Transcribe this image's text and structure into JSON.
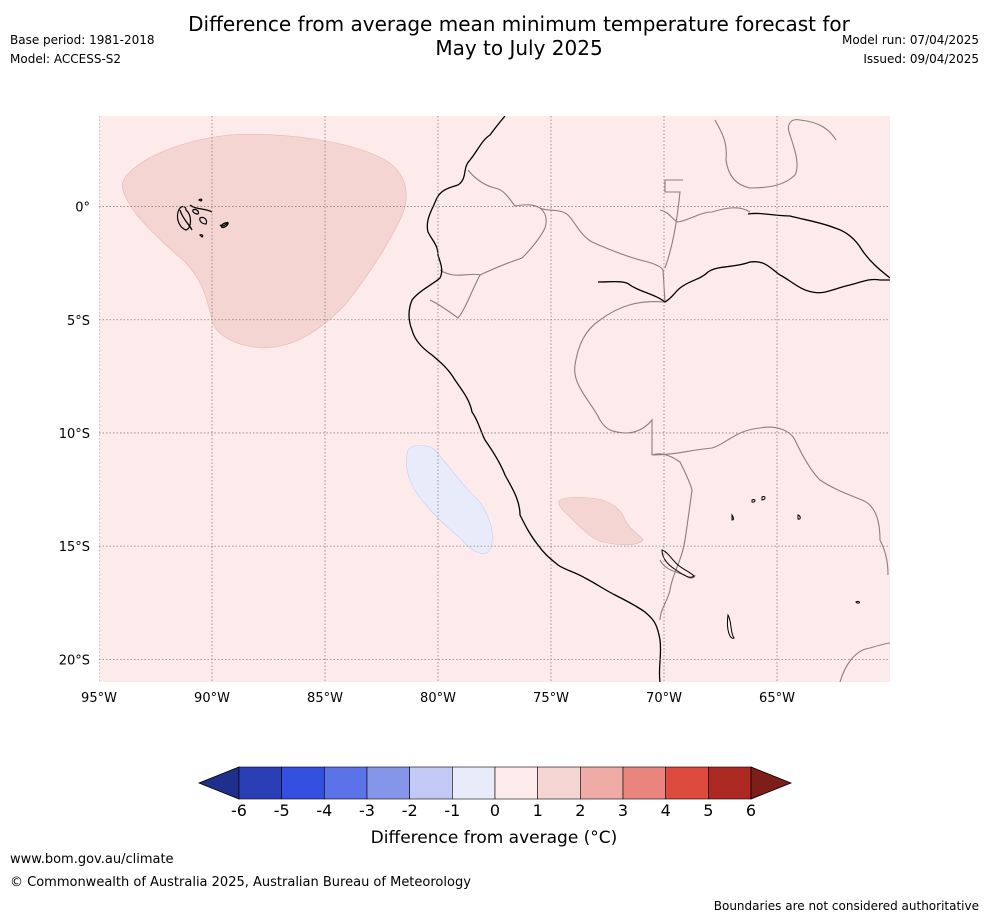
{
  "header": {
    "title_line1": "Difference from average mean minimum temperature forecast for",
    "title_line2": "May to July 2025",
    "base_period": "Base period: 1981-2018",
    "model": "Model: ACCESS-S2",
    "model_run": "Model run: 07/04/2025",
    "issued": "Issued: 09/04/2025"
  },
  "map": {
    "lon_ticks": [
      "95°W",
      "90°W",
      "85°W",
      "80°W",
      "75°W",
      "70°W",
      "65°W"
    ],
    "lat_ticks": [
      "0°",
      "5°S",
      "10°S",
      "15°S",
      "20°S"
    ],
    "extent": {
      "lon_min": -95,
      "lon_max": -60,
      "lat_min": -21,
      "lat_max": 4
    },
    "background_category": "0 to 1",
    "anomaly_areas": [
      {
        "region": "Pacific Ocean west of Ecuador / around Galapagos",
        "category": "1 to 2"
      },
      {
        "region": "Offshore central Peru",
        "category": "-1 to 0"
      },
      {
        "region": "Southern Peru highlands",
        "category": "1 to 2"
      }
    ],
    "colors": {
      "bin_0_1": "#fcebea",
      "bin_1_2": "#f4d5d2",
      "bin_m1_0": "#e8ecfa",
      "coast": "#000000",
      "border": "#8a7f7f",
      "grid": "#8a7f7f"
    }
  },
  "legend": {
    "label": "Difference from average (°C)",
    "ticks": [
      "-6",
      "-5",
      "-4",
      "-3",
      "-2",
      "-1",
      "0",
      "1",
      "2",
      "3",
      "4",
      "5",
      "6"
    ],
    "colors": [
      "#1f2f8c",
      "#2a3fb5",
      "#324fe0",
      "#5b72e8",
      "#8595ea",
      "#c2c9f5",
      "#e8ecfa",
      "#fcebea",
      "#f4d5d2",
      "#efaca6",
      "#e9857d",
      "#dc4b3e",
      "#ad2a22",
      "#7d1e18"
    ]
  },
  "footer": {
    "url": "www.bom.gov.au/climate",
    "copyright": "© Commonwealth of Australia 2025, Australian Bureau of Meteorology",
    "disclaimer": "Boundaries are not considered authoritative"
  }
}
